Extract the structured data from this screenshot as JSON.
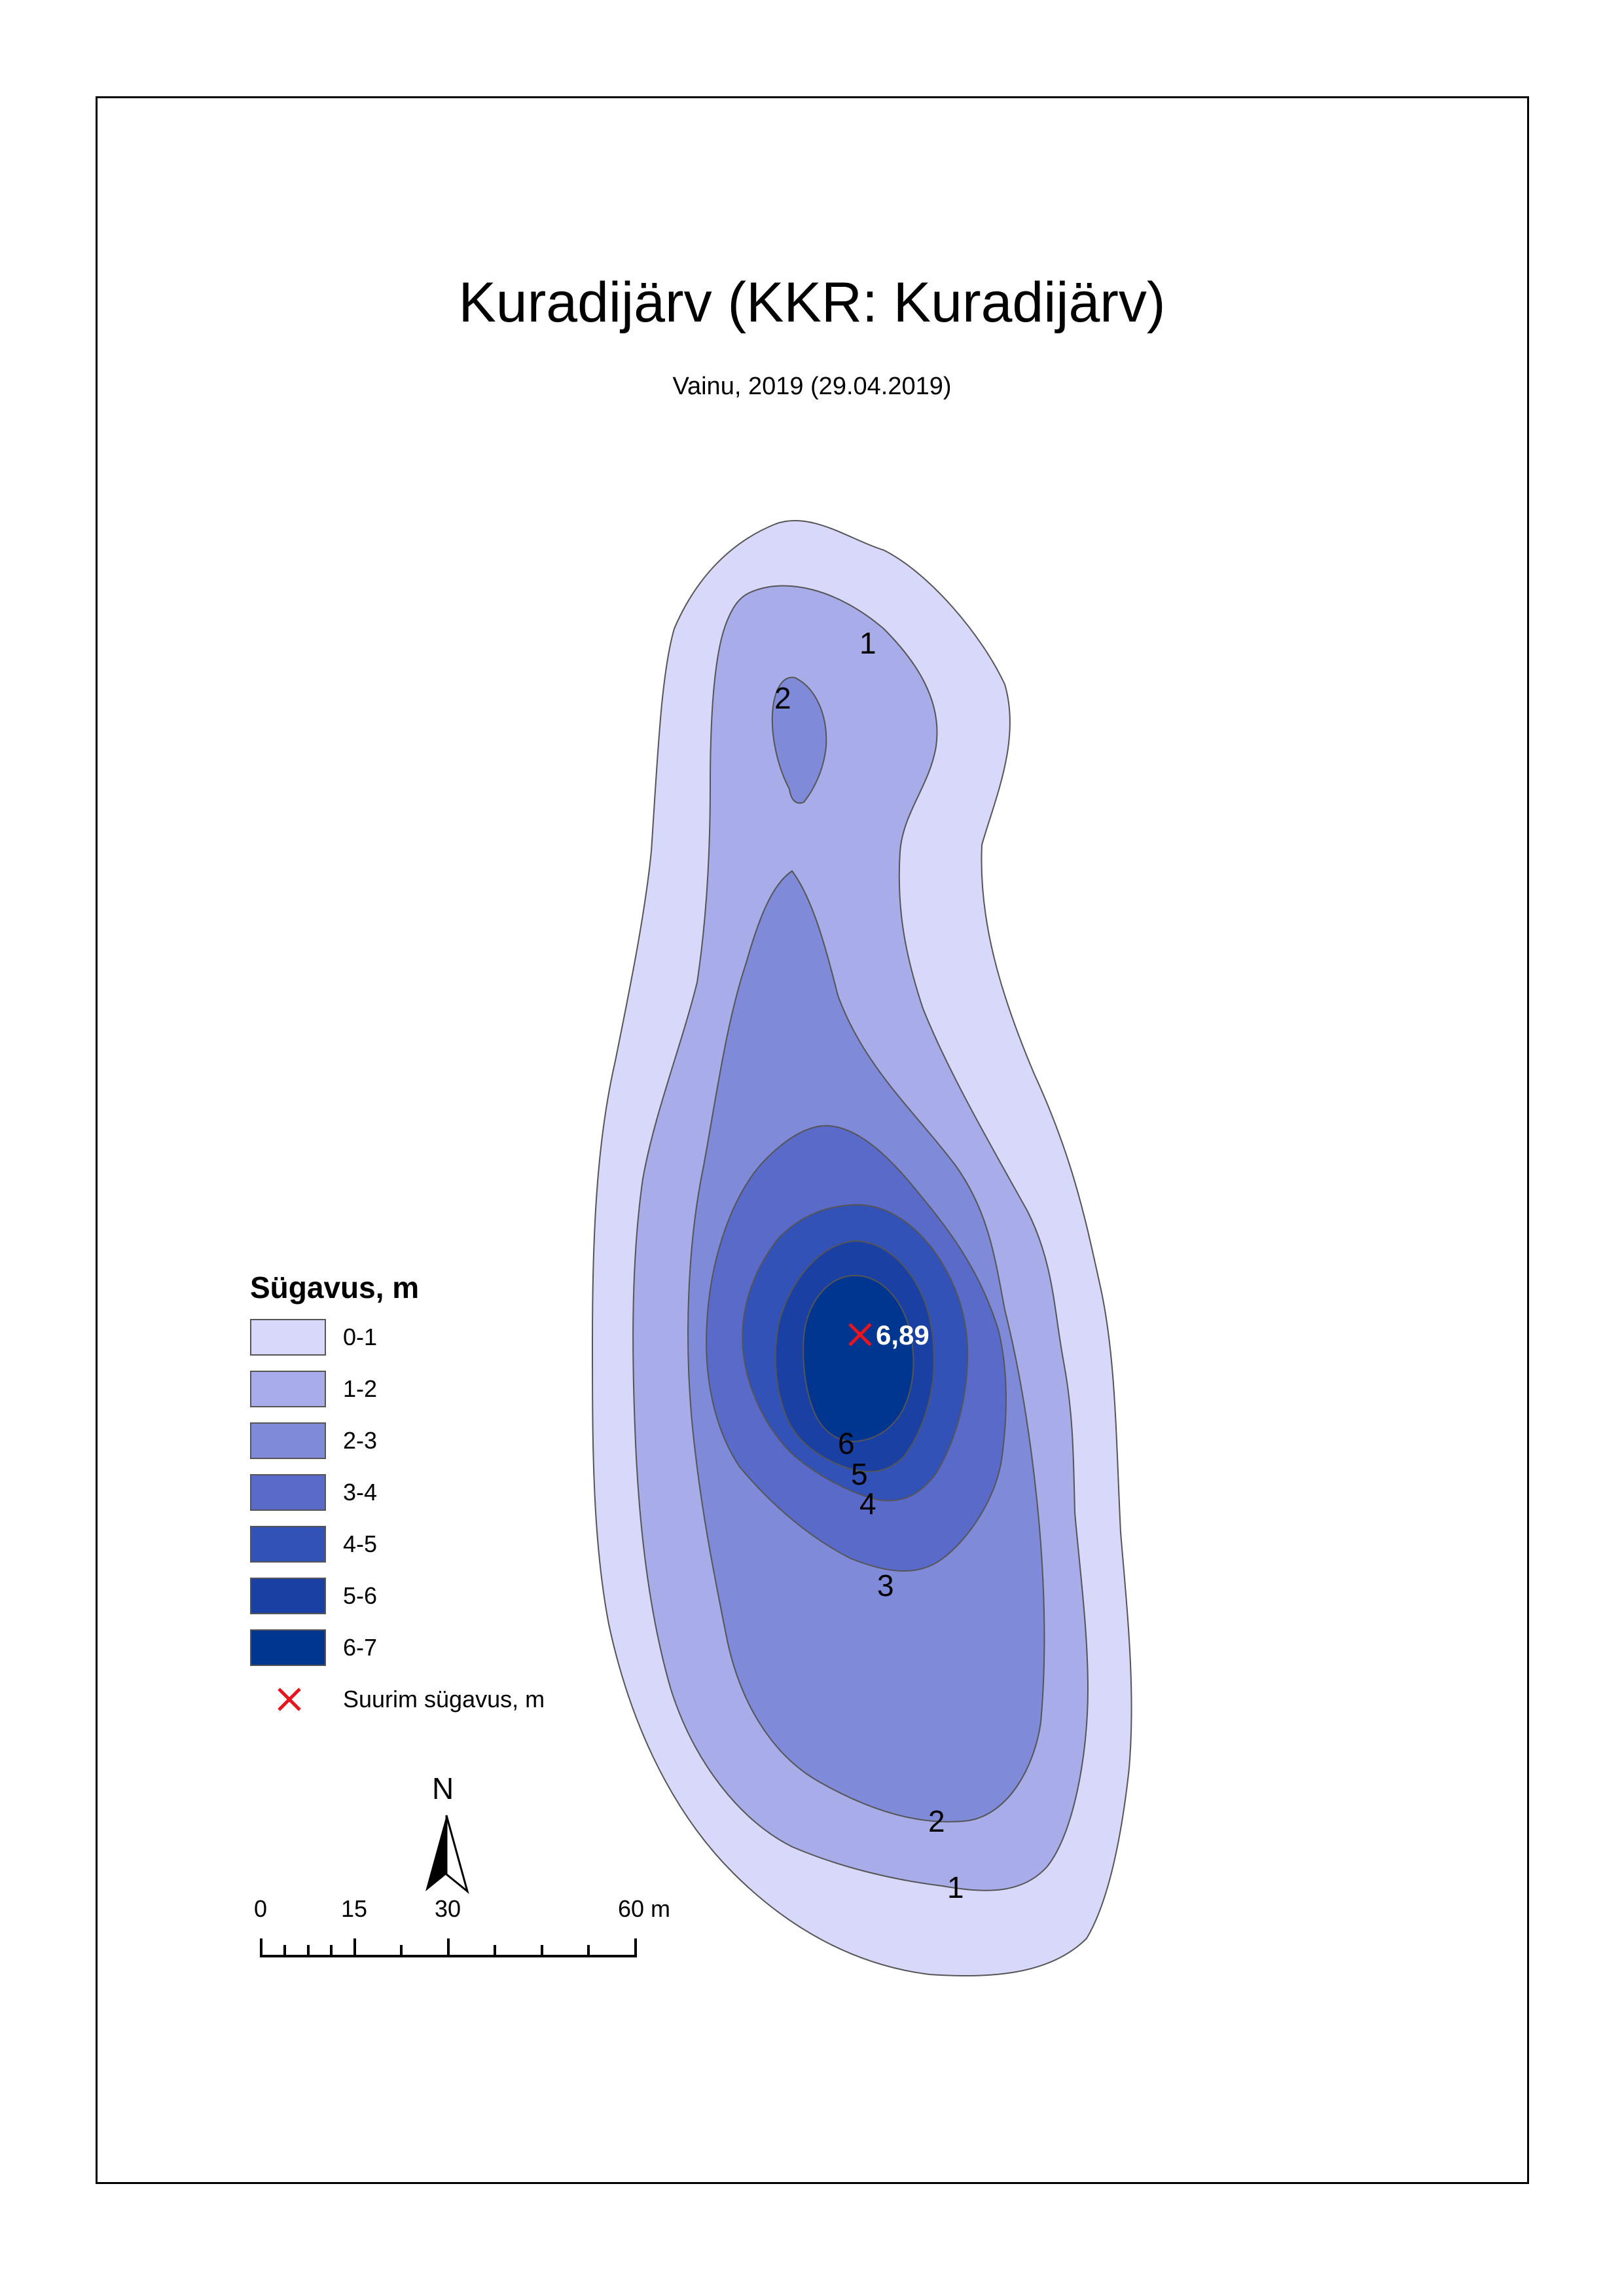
{
  "map": {
    "title": "Kuradijärv (KKR: Kuradijärv)",
    "subtitle": "Vainu, 2019 (29.04.2019)"
  },
  "legend": {
    "title": "Sügavus, m",
    "classes": [
      {
        "label": "0-1",
        "color": "#d8d8fa"
      },
      {
        "label": "1-2",
        "color": "#a8ace8"
      },
      {
        "label": "2-3",
        "color": "#7f8ad8"
      },
      {
        "label": "3-4",
        "color": "#5a6ac8"
      },
      {
        "label": "4-5",
        "color": "#3352b8"
      },
      {
        "label": "5-6",
        "color": "#1a40a4"
      },
      {
        "label": "6-7",
        "color": "#003590"
      }
    ],
    "max_depth_label": "Suurim sügavus, m",
    "max_depth_color": "#e8141e"
  },
  "max_depth": {
    "value": "6,89"
  },
  "contour_labels": [
    "1",
    "2",
    "6",
    "5",
    "4",
    "3",
    "2",
    "1"
  ],
  "north_arrow": {
    "label": "N"
  },
  "scale_bar": {
    "labels": [
      "0",
      "15",
      "30",
      "60 m"
    ]
  }
}
